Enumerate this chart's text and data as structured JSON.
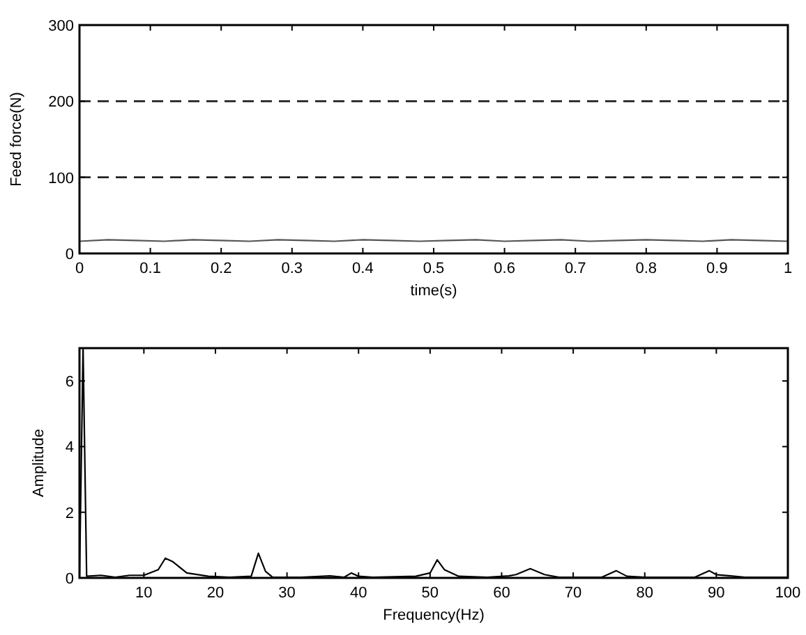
{
  "chart_data": [
    {
      "type": "line",
      "xlabel": "time(s)",
      "ylabel": "Feed force(N)",
      "xlim": [
        0,
        1
      ],
      "xticks": [
        0,
        0.1,
        0.2,
        0.3,
        0.4,
        0.5,
        0.6,
        0.7,
        0.8,
        0.9,
        1
      ],
      "ylim": [
        0,
        300
      ],
      "yticks": [
        0,
        100,
        200,
        300
      ],
      "ref_lines": [
        {
          "axis": "y",
          "value": 100,
          "line_style": "dashed",
          "color": "#222222"
        },
        {
          "axis": "y",
          "value": 200,
          "line_style": "dashed",
          "color": "#222222"
        }
      ],
      "series": [
        {
          "color": "#555555",
          "x": [
            0,
            0.04,
            0.08,
            0.12,
            0.16,
            0.2,
            0.24,
            0.28,
            0.32,
            0.36,
            0.4,
            0.44,
            0.48,
            0.52,
            0.56,
            0.6,
            0.64,
            0.68,
            0.72,
            0.76,
            0.8,
            0.84,
            0.88,
            0.92,
            0.96,
            1
          ],
          "values": [
            16,
            18,
            17,
            16,
            18,
            17,
            16,
            18,
            17,
            16,
            18,
            17,
            16,
            17,
            18,
            16,
            17,
            18,
            16,
            17,
            18,
            17,
            16,
            18,
            17,
            16
          ]
        }
      ]
    },
    {
      "type": "line",
      "xlabel": "Frequency(Hz)",
      "ylabel": "Amplitude",
      "xlim": [
        1,
        100
      ],
      "xticks": [
        10,
        20,
        30,
        40,
        50,
        60,
        70,
        80,
        90,
        100
      ],
      "ylim": [
        0,
        7
      ],
      "yticks": [
        0,
        2,
        4,
        6
      ],
      "series": [
        {
          "color": "#000000",
          "x": [
            1,
            1.5,
            2,
            4,
            6,
            8,
            10,
            12,
            13,
            14,
            16,
            19,
            22,
            25,
            26,
            27,
            28,
            32,
            36,
            38,
            39,
            40,
            42,
            48,
            50,
            51,
            52,
            54,
            58,
            61,
            62,
            64,
            66,
            68,
            74,
            76,
            77.5,
            80,
            87,
            89,
            90,
            92,
            94,
            100
          ],
          "values": [
            0,
            7,
            0.05,
            0.08,
            0.02,
            0.08,
            0.08,
            0.25,
            0.6,
            0.5,
            0.15,
            0.05,
            0.02,
            0.05,
            0.75,
            0.2,
            0.02,
            0.02,
            0.06,
            0.02,
            0.15,
            0.05,
            0.02,
            0.05,
            0.15,
            0.55,
            0.25,
            0.05,
            0.02,
            0.06,
            0.1,
            0.28,
            0.1,
            0.02,
            0.02,
            0.22,
            0.05,
            0.02,
            0.02,
            0.22,
            0.1,
            0.06,
            0.02,
            0.02
          ]
        }
      ]
    }
  ]
}
